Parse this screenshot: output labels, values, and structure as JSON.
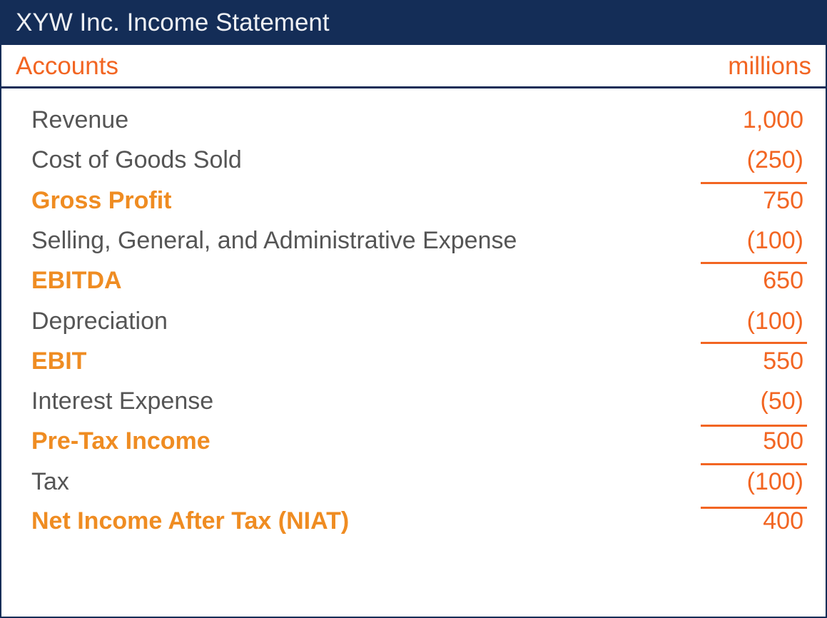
{
  "title": "XYW Inc. Income Statement",
  "header": {
    "accounts_label": "Accounts",
    "units_label": "millions"
  },
  "rows": [
    {
      "label": "Revenue",
      "value": "1,000",
      "total": false
    },
    {
      "label": "Cost of Goods Sold",
      "value": "(250)",
      "total": false
    },
    {
      "label": "Gross Profit",
      "value": "750",
      "total": true
    },
    {
      "label": "Selling, General, and Administrative Expense",
      "value": "(100)",
      "total": false
    },
    {
      "label": "EBITDA",
      "value": "650",
      "total": true
    },
    {
      "label": "Depreciation",
      "value": "(100)",
      "total": false
    },
    {
      "label": "EBIT",
      "value": "550",
      "total": true
    },
    {
      "label": "Interest Expense",
      "value": "(50)",
      "total": false
    },
    {
      "label": "Pre-Tax Income",
      "value": "500",
      "total": true
    },
    {
      "label": "Tax",
      "value": "(100)",
      "total": false
    },
    {
      "label": "Net Income After Tax (NIAT)",
      "value": "400",
      "total": true
    }
  ],
  "colors": {
    "navy": "#142d57",
    "orange": "#f26522",
    "total_orange": "#ef8c22",
    "text_gray": "#555555"
  }
}
